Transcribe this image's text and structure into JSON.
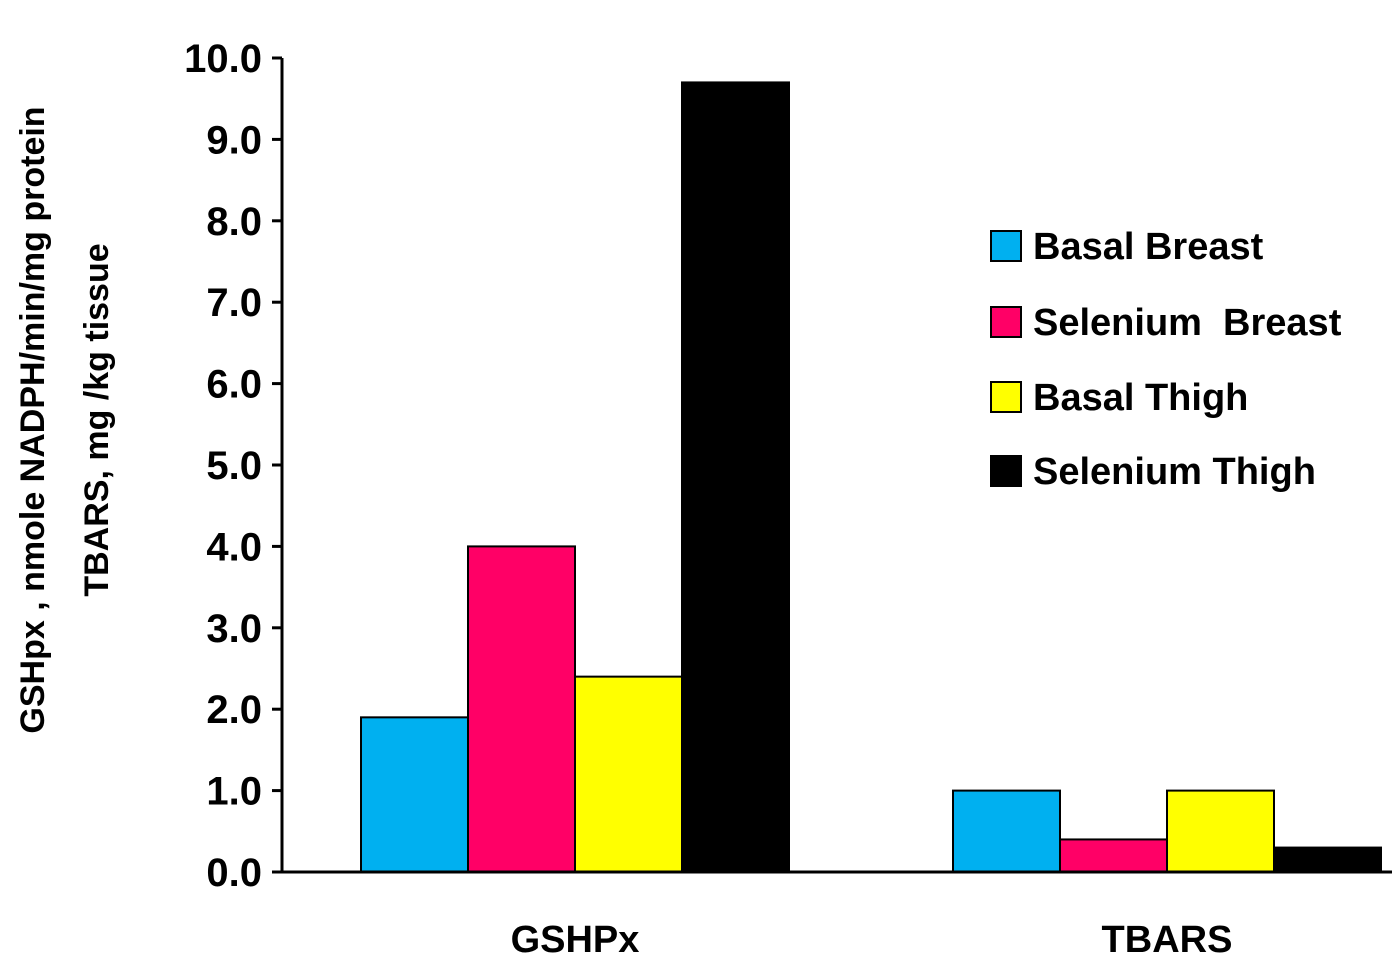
{
  "chart_data": {
    "type": "bar",
    "categories": [
      "GSHPx",
      "TBARS"
    ],
    "series": [
      {
        "name": "Basal Breast",
        "values": [
          1.9,
          1.0
        ],
        "color": "#00b0f0"
      },
      {
        "name": "Selenium  Breast",
        "values": [
          4.0,
          0.4
        ],
        "color": "#ff0066"
      },
      {
        "name": "Basal Thigh",
        "values": [
          2.4,
          1.0
        ],
        "color": "#ffff00"
      },
      {
        "name": "Selenium Thigh",
        "values": [
          9.7,
          0.3
        ],
        "color": "#000000"
      }
    ],
    "ylabel_lines": [
      "GSHpx , nmole NADPH/min/mg protein",
      "TBARS, mg /kg tissue"
    ],
    "ylim": [
      0,
      10
    ],
    "yticks": [
      "0.0",
      "1.0",
      "2.0",
      "3.0",
      "4.0",
      "5.0",
      "6.0",
      "7.0",
      "8.0",
      "9.0",
      "10.0"
    ],
    "grid": false,
    "legend_position": "right"
  }
}
